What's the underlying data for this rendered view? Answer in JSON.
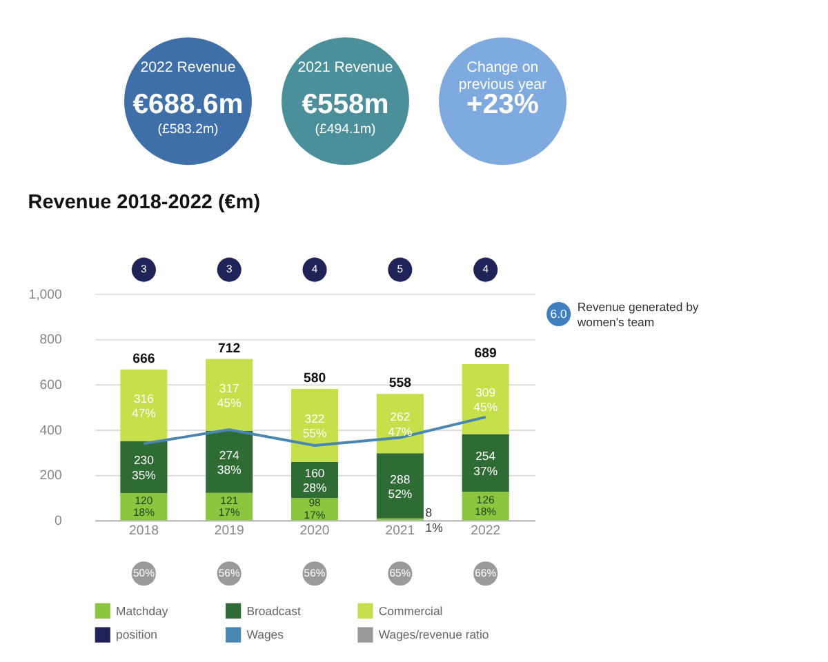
{
  "chart_data": [
    {
      "type": "other",
      "categories": [
        "2022 Revenue",
        "2021 Revenue",
        "Change on previous year"
      ],
      "value_labels": [
        "€688.6m",
        "€558m",
        "+23%"
      ],
      "annotations": [
        "(£583.2m)",
        "(£494.1m)"
      ],
      "colors": [
        "#3e6fa8",
        "#4a8f99",
        "#7eaadf"
      ]
    },
    {
      "type": "bar",
      "title": "Revenue 2018-2022 (€m)",
      "stacked": true,
      "categories": [
        "2018",
        "2019",
        "2020",
        "2021",
        "2022"
      ],
      "series": [
        {
          "name": "Matchday",
          "color": "#8cc63e",
          "values": [
            120,
            121,
            98,
            8,
            126
          ],
          "value_labels": [
            "120\n18%",
            "121\n17%",
            "98\n17%",
            "8\n1%",
            "126\n18%"
          ]
        },
        {
          "name": "Broadcast",
          "color": "#2f6b34",
          "values": [
            230,
            274,
            160,
            288,
            254
          ],
          "value_labels": [
            "230\n35%",
            "274\n38%",
            "160\n28%",
            "288\n52%",
            "254\n37%"
          ]
        },
        {
          "name": "Commercial",
          "color": "#c5e04a",
          "values": [
            316,
            317,
            322,
            262,
            309
          ],
          "value_labels": [
            "316\n47%",
            "317\n45%",
            "322\n55%",
            "262\n47%",
            "309\n45%"
          ]
        },
        {
          "name": "position",
          "type": "scatter",
          "color": "#1f2358",
          "values": [
            null,
            null,
            null,
            null,
            null
          ],
          "value_labels": [
            "3",
            "3",
            "4",
            "5",
            "4"
          ]
        },
        {
          "name": "Wages",
          "type": "line",
          "color": "#4a86b4",
          "values": [
            338,
            400,
            330,
            365,
            455
          ]
        },
        {
          "name": "Wages/revenue ratio",
          "type": "scatter",
          "color": "#9a9a9a",
          "values": [
            null,
            null,
            null,
            null,
            null
          ],
          "value_labels": [
            "50%",
            "56%",
            "56%",
            "65%",
            "66%"
          ]
        }
      ],
      "totals": [
        "666",
        "712",
        "580",
        "558",
        "689"
      ],
      "annotations": [
        "6.0",
        "Revenue generated by women's team"
      ],
      "ylim": [
        0,
        1000
      ],
      "yticks": [
        0,
        200,
        400,
        600,
        800,
        {
          "value": 1000,
          "label": "1,000"
        }
      ],
      "grid": "y",
      "legend": "bottom"
    }
  ]
}
